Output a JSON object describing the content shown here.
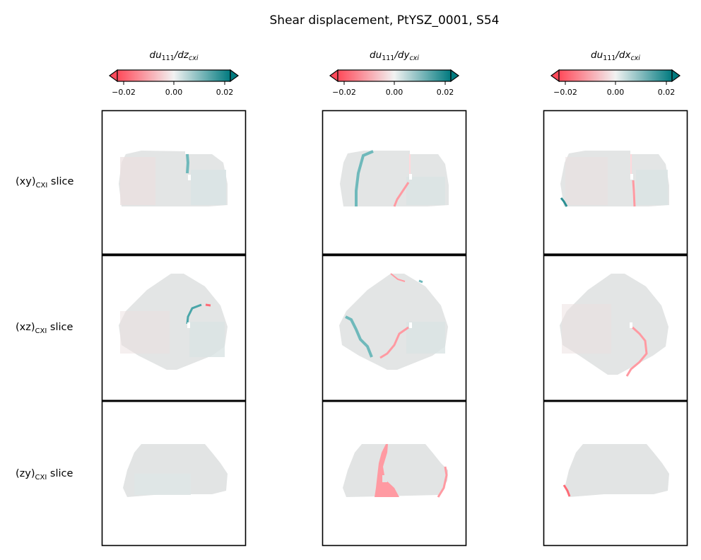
{
  "chart_data": {
    "type": "heatmap",
    "title": "Shear displacement, PtYSZ_0001, S54",
    "colorbar": {
      "min": -0.02,
      "max": 0.02,
      "extend": "both",
      "ticks": [
        "−0.02",
        "0.00",
        "0.02"
      ],
      "colors": {
        "negative": "#ff4a5a",
        "zero": "#f2f2f2",
        "positive": "#007a7f"
      }
    },
    "columns": [
      {
        "label_base": "du",
        "label_sub1": "111",
        "label_mid": "/dz",
        "label_sub2": "cxi"
      },
      {
        "label_base": "du",
        "label_sub1": "111",
        "label_mid": "/dy",
        "label_sub2": "cxi"
      },
      {
        "label_base": "du",
        "label_sub1": "111",
        "label_mid": "/dx",
        "label_sub2": "cxi"
      }
    ],
    "rows": [
      {
        "label_pre": "(xy)",
        "label_sub": "CXI",
        "label_post": " slice"
      },
      {
        "label_pre": "(xz)",
        "label_sub": "CXI",
        "label_post": " slice"
      },
      {
        "label_pre": "(zy)",
        "label_sub": "CXI",
        "label_post": " slice"
      }
    ],
    "panel_background_value": 0.0005,
    "grid": false
  },
  "colors": {
    "axes_edge": "#000000",
    "slice_fill": "#e2e4e4",
    "positive_stripe": "#7cc3c4",
    "negative_stripe": "#ff9aa2"
  }
}
